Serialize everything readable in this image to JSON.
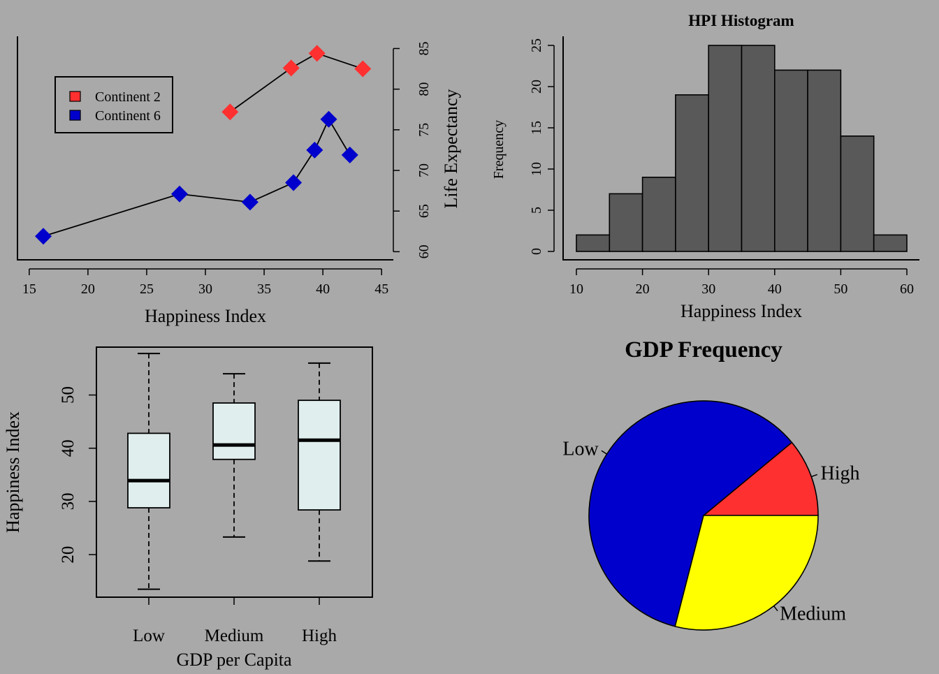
{
  "page": {
    "background": "#a9a9a9"
  },
  "chart_data": [
    {
      "type": "line",
      "title": "",
      "xlabel": "Happiness Index",
      "ylabel": "Life Expectancy",
      "xlim": [
        14,
        46
      ],
      "ylim": [
        59,
        86.5
      ],
      "x_ticks": [
        15,
        20,
        25,
        30,
        35,
        40,
        45
      ],
      "y_ticks": [
        60,
        65,
        70,
        75,
        80,
        85
      ],
      "y_axis_side": "right",
      "legend": {
        "placement": "top-left"
      },
      "series": [
        {
          "name": "Continent 2",
          "color": "#ff3030",
          "x": [
            32.1,
            37.3,
            39.5,
            43.4
          ],
          "y": [
            77.2,
            82.6,
            84.4,
            82.5
          ]
        },
        {
          "name": "Continent 6",
          "color": "#0000cd",
          "x": [
            16.2,
            27.8,
            33.8,
            37.5,
            39.3,
            40.5,
            42.3
          ],
          "y": [
            61.9,
            67.1,
            66.1,
            68.5,
            72.5,
            76.3,
            71.9
          ]
        }
      ]
    },
    {
      "type": "bar",
      "title": "HPI Histogram",
      "xlabel": "Happiness Index",
      "ylabel": "Frequency",
      "xlim": [
        10,
        60
      ],
      "ylim": [
        0,
        25
      ],
      "x_ticks": [
        10,
        20,
        30,
        40,
        50,
        60
      ],
      "y_ticks": [
        0,
        5,
        10,
        15,
        20,
        25
      ],
      "bin_edges": [
        10,
        15,
        20,
        25,
        30,
        35,
        40,
        45,
        50,
        55,
        60
      ],
      "values": [
        2,
        7,
        9,
        19,
        25,
        25,
        22,
        22,
        14,
        2
      ],
      "fill_color": "#595959"
    },
    {
      "type": "box",
      "title": "",
      "xlabel": "GDP per Capita",
      "ylabel": "Happiness Index",
      "ylim": [
        12,
        59
      ],
      "y_ticks": [
        20,
        30,
        40,
        50
      ],
      "categories": [
        "Low",
        "Medium",
        "High"
      ],
      "fill_color": "#e0eeee",
      "boxes": [
        {
          "min": 13.5,
          "q1": 28.8,
          "median": 33.9,
          "q3": 42.8,
          "max": 57.8
        },
        {
          "min": 23.3,
          "q1": 37.9,
          "median": 40.6,
          "q3": 48.5,
          "max": 54.0
        },
        {
          "min": 18.8,
          "q1": 28.4,
          "median": 41.5,
          "q3": 49.0,
          "max": 56.0
        }
      ]
    },
    {
      "type": "pie",
      "title": "GDP Frequency",
      "slices": [
        {
          "label": "High",
          "value": 11,
          "color": "#ff3030"
        },
        {
          "label": "Low",
          "value": 60,
          "color": "#0000cd"
        },
        {
          "label": "Medium",
          "value": 29,
          "color": "#ffff00"
        }
      ]
    }
  ]
}
